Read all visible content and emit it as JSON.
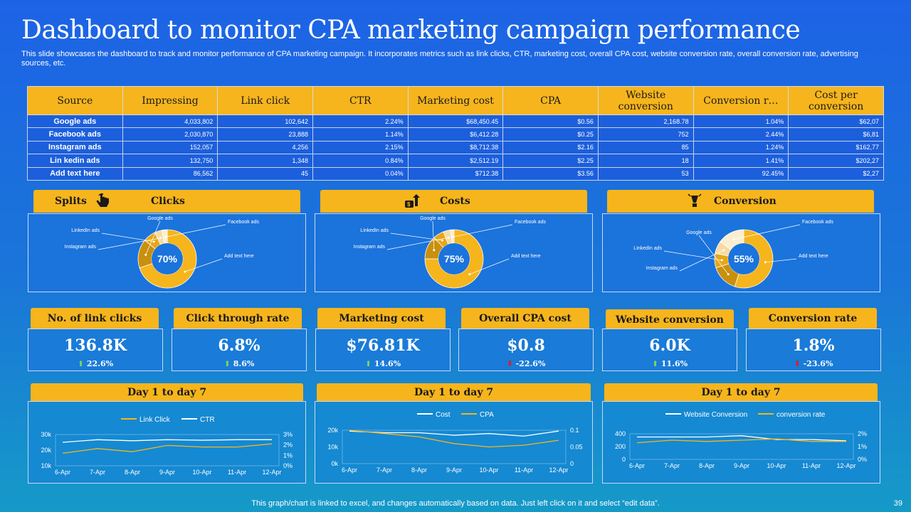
{
  "header": {
    "title": "Dashboard to monitor CPA marketing campaign performance",
    "subtitle": "This slide showcases the dashboard to track and monitor performance of CPA marketing campaign. It incorporates metrics such as link clicks, CTR, marketing cost, overall CPA cost, website conversion rate, overall conversion rate, advertising sources, etc."
  },
  "table": {
    "headers": [
      "Source",
      "Impressing",
      "Link click",
      "CTR",
      "Marketing cost",
      "CPA",
      "Website conversion",
      "Conversion r…",
      "Cost per conversion"
    ],
    "rows": [
      [
        "Google ads",
        "4,033,802",
        "102,642",
        "2.24%",
        "$68,450.45",
        "$0.56",
        "2,168.78",
        "1.04%",
        "$62,07"
      ],
      [
        "Facebook ads",
        "2,030,870",
        "23,888",
        "1.14%",
        "$6,412.28",
        "$0.25",
        "752",
        "2.44%",
        "$6,81"
      ],
      [
        "Instagram ads",
        "152,057",
        "4,256",
        "2.15%",
        "$8,712.38",
        "$2.16",
        "85",
        "1.24%",
        "$162,77"
      ],
      [
        "Lin kedin ads",
        "132,750",
        "1,348",
        "0.84%",
        "$2,512.19",
        "$2.25",
        "18",
        "1.41%",
        "$202,27"
      ],
      [
        "Add text here",
        "86,562",
        "45",
        "0.04%",
        "$712.38",
        "$3.56",
        "53",
        "92.45%",
        "$2,27"
      ]
    ]
  },
  "splits": {
    "label": "Splits",
    "panels": [
      {
        "title": "Clicks",
        "icon": "hand-pointer-icon",
        "center": "70%",
        "labels": [
          "LinkedIn ads",
          "Instagram ads",
          "Facebook ads",
          "Add text here",
          "Google ads"
        ],
        "values": [
          70,
          16,
          7,
          4,
          3
        ]
      },
      {
        "title": "Costs",
        "icon": "money-growth-icon",
        "center": "75%",
        "labels": [
          "LinkedIn ads",
          "Instagram ads",
          "Facebook ads",
          "Add text here",
          "Google ads"
        ],
        "values": [
          75,
          13,
          6,
          4,
          2
        ]
      },
      {
        "title": "Conversion",
        "icon": "lamp-icon",
        "center": "55%",
        "labels": [
          "LinkedIn ads",
          "Instagram ads",
          "Facebook ads",
          "Add text here",
          "Google ads"
        ],
        "values": [
          55,
          15,
          8,
          7,
          15
        ]
      }
    ]
  },
  "kpis": [
    {
      "title": "No. of link clicks",
      "value": "136.8K",
      "delta": "22.6%",
      "dir": "up"
    },
    {
      "title": "Click through rate",
      "value": "6.8%",
      "delta": "8.6%",
      "dir": "up"
    },
    {
      "title": "Marketing cost",
      "value": "$76.81K",
      "delta": "14.6%",
      "dir": "up"
    },
    {
      "title": "Overall CPA cost",
      "value": "$0.8",
      "delta": "-22.6%",
      "dir": "down"
    },
    {
      "title": "Website conversion",
      "value": "6.0K",
      "delta": "11.6%",
      "dir": "up"
    },
    {
      "title": "Conversion rate",
      "value": "1.8%",
      "delta": "-23.6%",
      "dir": "down"
    }
  ],
  "chart_data": [
    {
      "type": "line",
      "title": "Day 1 to day 7",
      "categories": [
        "6-Apr",
        "7-Apr",
        "8-Apr",
        "9-Apr",
        "10-Apr",
        "11-Apr",
        "12-Apr"
      ],
      "series": [
        {
          "name": "Link Click",
          "axis": "left",
          "color": "#f6b51c",
          "values": [
            18000,
            21000,
            19000,
            23000,
            22000,
            22000,
            24000
          ]
        },
        {
          "name": "CTR",
          "axis": "right",
          "color": "#ffffff",
          "values": [
            0.0225,
            0.025,
            0.024,
            0.025,
            0.0245,
            0.025,
            0.025
          ]
        }
      ],
      "left_ticks": [
        "30k",
        "20k",
        "10k"
      ],
      "right_ticks": [
        "3%",
        "2%",
        "1%",
        "0%"
      ],
      "ylim_left": [
        10000,
        30000
      ],
      "ylim_right": [
        0,
        0.03
      ]
    },
    {
      "type": "line",
      "title": "Day 1 to day 7",
      "categories": [
        "6-Apr",
        "7-Apr",
        "8-Apr",
        "9-Apr",
        "10-Apr",
        "11-Apr",
        "12-Apr"
      ],
      "series": [
        {
          "name": "Cost",
          "axis": "left",
          "color": "#ffffff",
          "values": [
            19500,
            18500,
            18500,
            17000,
            18000,
            16500,
            19500
          ]
        },
        {
          "name": "CPA",
          "axis": "right",
          "color": "#f6b51c",
          "values": [
            0.1,
            0.09,
            0.08,
            0.06,
            0.05,
            0.055,
            0.07
          ]
        }
      ],
      "left_ticks": [
        "20k",
        "10k",
        "0k"
      ],
      "right_ticks": [
        "0.1",
        "0.05",
        "0"
      ],
      "ylim_left": [
        0,
        20000
      ],
      "ylim_right": [
        0,
        0.1
      ]
    },
    {
      "type": "line",
      "title": "Day 1 to day 7",
      "categories": [
        "6-Apr",
        "7-Apr",
        "8-Apr",
        "9-Apr",
        "10-Apr",
        "11-Apr",
        "12-Apr"
      ],
      "series": [
        {
          "name": "Website Conversion",
          "axis": "left",
          "color": "#ffffff",
          "values": [
            350,
            350,
            350,
            370,
            310,
            310,
            290
          ]
        },
        {
          "name": "conversion rate",
          "axis": "right",
          "color": "#f6b51c",
          "values": [
            0.013,
            0.015,
            0.014,
            0.015,
            0.016,
            0.014,
            0.014
          ]
        }
      ],
      "left_ticks": [
        "400",
        "200",
        "0"
      ],
      "right_ticks": [
        "2%",
        "1%",
        "0%"
      ],
      "ylim_left": [
        0,
        400
      ],
      "ylim_right": [
        0,
        0.02
      ]
    }
  ],
  "footer": {
    "note": "This graph/chart is linked to excel, and changes automatically based on data. Just left click on it and select “edit data”.",
    "page": "39"
  },
  "colors": {
    "accent": "#f6b51c",
    "background": "#1d63e6",
    "up": "#7bd35a",
    "down": "#e01b1b"
  }
}
